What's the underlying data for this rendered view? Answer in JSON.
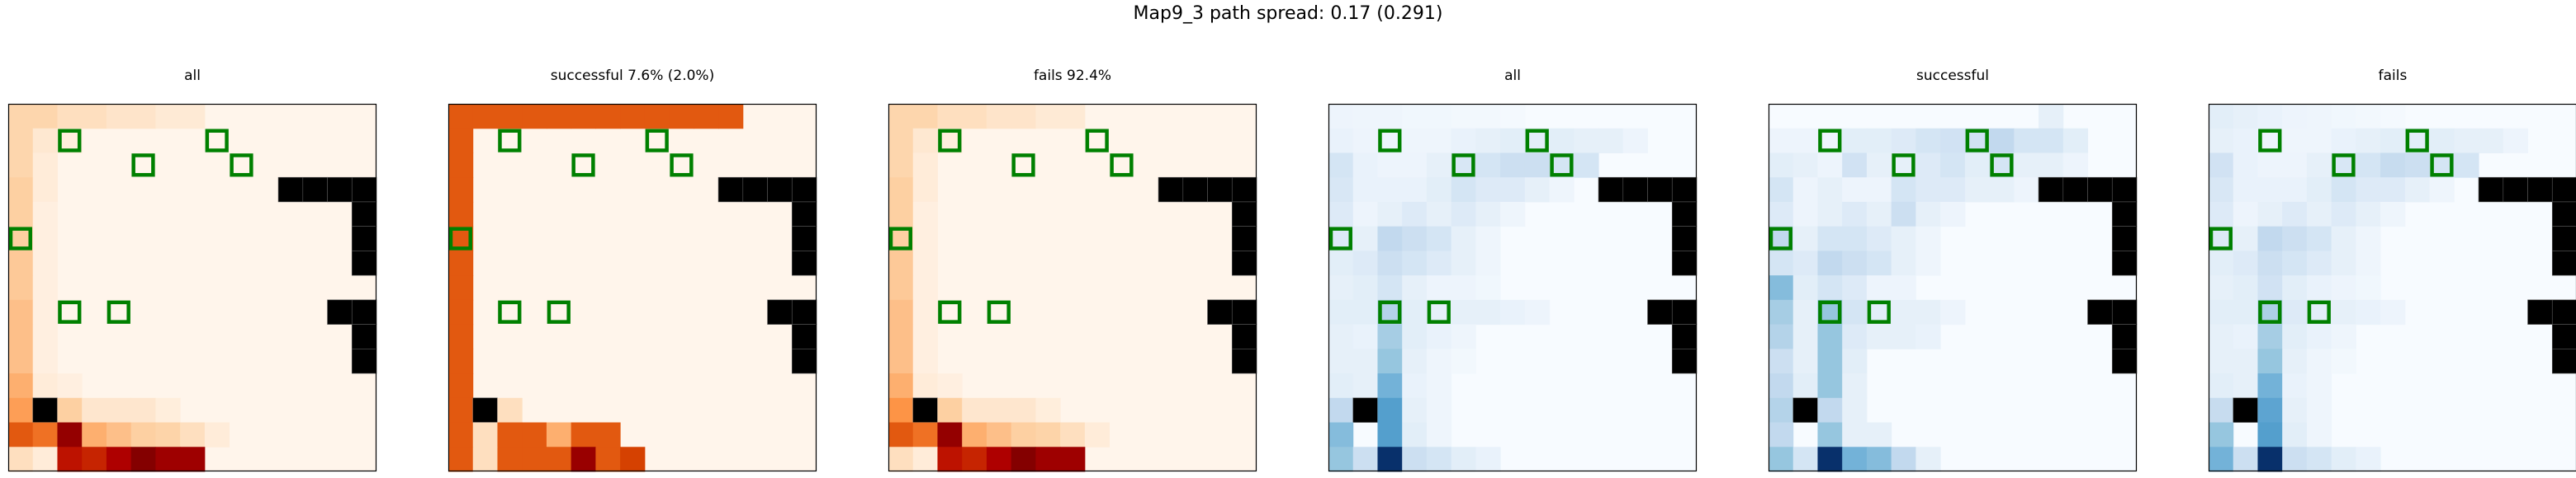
{
  "figure": {
    "title": "Map9_3 path spread: 0.17 (0.291)"
  },
  "chart_data": {
    "type": "heatmap",
    "grid_size": 15,
    "obstacles": [
      [
        3,
        11
      ],
      [
        3,
        12
      ],
      [
        3,
        13
      ],
      [
        3,
        14
      ],
      [
        4,
        14
      ],
      [
        5,
        14
      ],
      [
        6,
        14
      ],
      [
        8,
        13
      ],
      [
        8,
        14
      ],
      [
        9,
        14
      ],
      [
        10,
        14
      ],
      [
        12,
        1
      ]
    ],
    "goals": [
      [
        1,
        2
      ],
      [
        1,
        8
      ],
      [
        2,
        5
      ],
      [
        2,
        9
      ],
      [
        5,
        0
      ],
      [
        8,
        2
      ],
      [
        8,
        4
      ]
    ],
    "panels": [
      {
        "title": "all",
        "colormap": "reds",
        "cells": [
          [
            0.17,
            0.17,
            0.12,
            0.12,
            0.09,
            0.09,
            0.06,
            0.06
          ],
          [
            0.17,
            0.07,
            0.04
          ],
          [
            0.17,
            0.05
          ],
          [
            0.2,
            0.05
          ],
          [
            0.2,
            0.03
          ],
          [
            0.2,
            0.03
          ],
          [
            0.22,
            0.03
          ],
          [
            0.22,
            0.03
          ],
          [
            0.25,
            0.03
          ],
          [
            0.25,
            0.03
          ],
          [
            0.25,
            0.03
          ],
          [
            0.3,
            0.05,
            0.03
          ],
          [
            0.35,
            0,
            0.2,
            0.08,
            0.08,
            0.08,
            0.04
          ],
          [
            0.55,
            0.48,
            0.92,
            0.3,
            0.25,
            0.2,
            0.18,
            0.12,
            0.05
          ],
          [
            0.12,
            0.05,
            0.75,
            0.7,
            0.82,
            0.98,
            0.88,
            0.88
          ]
        ]
      },
      {
        "title": "successful 7.6% (2.0%)",
        "colormap": "reds",
        "cells": [
          [
            0.55,
            0.55,
            0.55,
            0.55,
            0.55,
            0.55,
            0.55,
            0.55,
            0.55,
            0.55,
            0.55,
            0.55
          ],
          [
            0.55
          ],
          [
            0.55
          ],
          [
            0.55
          ],
          [
            0.55
          ],
          [
            0.55
          ],
          [
            0.55
          ],
          [
            0.55
          ],
          [
            0.55
          ],
          [
            0.55
          ],
          [
            0.55
          ],
          [
            0.55
          ],
          [
            0.55,
            0,
            0.12
          ],
          [
            0.55,
            0.12,
            0.55,
            0.55,
            0.3,
            0.55,
            0.55
          ],
          [
            0.55,
            0.12,
            0.55,
            0.55,
            0.55,
            0.9,
            0.55,
            0.62
          ]
        ]
      },
      {
        "title": "fails 92.4%",
        "colormap": "reds",
        "cells": [
          [
            0.17,
            0.17,
            0.12,
            0.12,
            0.09,
            0.09,
            0.06,
            0.06
          ],
          [
            0.17,
            0.07,
            0.04
          ],
          [
            0.17,
            0.05
          ],
          [
            0.2,
            0.05
          ],
          [
            0.2,
            0.03
          ],
          [
            0.2,
            0.03
          ],
          [
            0.22,
            0.03
          ],
          [
            0.22,
            0.03
          ],
          [
            0.25,
            0.03
          ],
          [
            0.25,
            0.03
          ],
          [
            0.25,
            0.03
          ],
          [
            0.3,
            0.05,
            0.03
          ],
          [
            0.38,
            0,
            0.2,
            0.08,
            0.08,
            0.08,
            0.04
          ],
          [
            0.55,
            0.48,
            0.92,
            0.3,
            0.25,
            0.2,
            0.18,
            0.12,
            0.05
          ],
          [
            0.12,
            0.05,
            0.75,
            0.7,
            0.82,
            0.98,
            0.88,
            0.88
          ]
        ]
      },
      {
        "title": "all",
        "colormap": "blues",
        "cells": [
          [
            0.06,
            0.05,
            0.05,
            0.04,
            0.04,
            0.03,
            0.03,
            0.02
          ],
          [
            0.08,
            0.06,
            0.06,
            0.05,
            0.05,
            0.08,
            0.1,
            0.12,
            0.12,
            0.12,
            0.1,
            0.1,
            0.06
          ],
          [
            0.2,
            0.08,
            0.06,
            0.06,
            0.1,
            0.18,
            0.2,
            0.25,
            0.25,
            0.2,
            0.2
          ],
          [
            0.18,
            0.08,
            0.08,
            0.08,
            0.12,
            0.2,
            0.15,
            0.15,
            0.1,
            0.05
          ],
          [
            0.15,
            0.06,
            0.1,
            0.15,
            0.1,
            0.15,
            0.1,
            0.05
          ],
          [
            0.15,
            0.1,
            0.3,
            0.25,
            0.2,
            0.1,
            0.05
          ],
          [
            0.12,
            0.15,
            0.25,
            0.2,
            0.15,
            0.1,
            0.05
          ],
          [
            0.1,
            0.12,
            0.2,
            0.1,
            0.06,
            0.06,
            0.04
          ],
          [
            0.12,
            0.12,
            0.35,
            0.12,
            0.1,
            0.1,
            0.1,
            0.08,
            0.06
          ],
          [
            0.1,
            0.08,
            0.4,
            0.12,
            0.08,
            0.05
          ],
          [
            0.1,
            0.1,
            0.45,
            0.1,
            0.05,
            0.03
          ],
          [
            0.12,
            0.1,
            0.55,
            0.08,
            0.05
          ],
          [
            0.3,
            0.18,
            0.65,
            0.1,
            0.05
          ],
          [
            0.5,
            0,
            0.65,
            0.12,
            0.05
          ],
          [
            0.45,
            0.25,
            1.0,
            0.25,
            0.2,
            0.12,
            0.08
          ]
        ]
      },
      {
        "title": "successful",
        "colormap": "blues",
        "cells": [
          [
            0,
            0,
            0,
            0,
            0,
            0,
            0,
            0,
            0,
            0,
            0,
            0.1
          ],
          [
            0.06,
            0.06,
            0.06,
            0.12,
            0.12,
            0.15,
            0.2,
            0.22,
            0.22,
            0.3,
            0.2,
            0.2,
            0.12
          ],
          [
            0.12,
            0.1,
            0.06,
            0.22,
            0.1,
            0.1,
            0.15,
            0.2,
            0.12,
            0.2,
            0.1,
            0.1,
            0.06
          ],
          [
            0.2,
            0.06,
            0.1,
            0.06,
            0.06,
            0.2,
            0.15,
            0.15,
            0.1,
            0.1,
            0.06
          ],
          [
            0.15,
            0.06,
            0.1,
            0.15,
            0.1,
            0.25,
            0.1,
            0.06
          ],
          [
            0.3,
            0.1,
            0.2,
            0.2,
            0.15,
            0.1,
            0.05
          ],
          [
            0.2,
            0.15,
            0.3,
            0.25,
            0.2,
            0.1,
            0.05
          ],
          [
            0.5,
            0.12,
            0.2,
            0.15,
            0.06,
            0.06
          ],
          [
            0.4,
            0.1,
            0.45,
            0.2,
            0.12,
            0.1,
            0.1,
            0.06
          ],
          [
            0.35,
            0.1,
            0.45,
            0.15,
            0.1,
            0.1,
            0.08
          ],
          [
            0.25,
            0.1,
            0.45,
            0.12
          ],
          [
            0.3,
            0.12,
            0.45,
            0.1
          ],
          [
            0.35,
            0.15,
            0.3,
            0.1
          ],
          [
            0.3,
            0,
            0.45,
            0.1,
            0.1
          ],
          [
            0.45,
            0.2,
            1.0,
            0.55,
            0.5,
            0.3,
            0.1
          ]
        ]
      },
      {
        "title": "fails",
        "colormap": "blues",
        "cells": [
          [
            0.12,
            0.1,
            0.08,
            0.06,
            0.05,
            0.04,
            0.03,
            0.02
          ],
          [
            0.1,
            0.08,
            0.06,
            0.05,
            0.05,
            0.08,
            0.1,
            0.12,
            0.12,
            0.12,
            0.1,
            0.1,
            0.06
          ],
          [
            0.22,
            0.08,
            0.06,
            0.06,
            0.1,
            0.18,
            0.2,
            0.28,
            0.25,
            0.2,
            0.2
          ],
          [
            0.18,
            0.08,
            0.08,
            0.08,
            0.12,
            0.2,
            0.15,
            0.15,
            0.1,
            0.05
          ],
          [
            0.15,
            0.06,
            0.1,
            0.15,
            0.1,
            0.15,
            0.1,
            0.05
          ],
          [
            0.15,
            0.1,
            0.3,
            0.25,
            0.2,
            0.1,
            0.05
          ],
          [
            0.12,
            0.15,
            0.25,
            0.2,
            0.15,
            0.1,
            0.05
          ],
          [
            0.1,
            0.12,
            0.22,
            0.12,
            0.08,
            0.06,
            0.04
          ],
          [
            0.12,
            0.12,
            0.38,
            0.15,
            0.12,
            0.1,
            0.08,
            0.06
          ],
          [
            0.1,
            0.08,
            0.4,
            0.12,
            0.08,
            0.05
          ],
          [
            0.1,
            0.1,
            0.45,
            0.1,
            0.05,
            0.03
          ],
          [
            0.12,
            0.1,
            0.55,
            0.08,
            0.05
          ],
          [
            0.28,
            0.18,
            0.62,
            0.1,
            0.05
          ],
          [
            0.45,
            0,
            0.65,
            0.12,
            0.05
          ],
          [
            0.55,
            0.25,
            1.0,
            0.25,
            0.2,
            0.12,
            0.08
          ]
        ]
      }
    ],
    "colors": {
      "reds": [
        "#fff5eb",
        "#fdd0a2",
        "#fd8d3c",
        "#d94801",
        "#b30000",
        "#7f0000"
      ],
      "blues": [
        "#f7fbff",
        "#deebf7",
        "#c6dbef",
        "#9ecae1",
        "#6baed6",
        "#4292c6",
        "#2171b5",
        "#08306b"
      ],
      "obstacle": "#000000",
      "goal": "#008000"
    }
  }
}
